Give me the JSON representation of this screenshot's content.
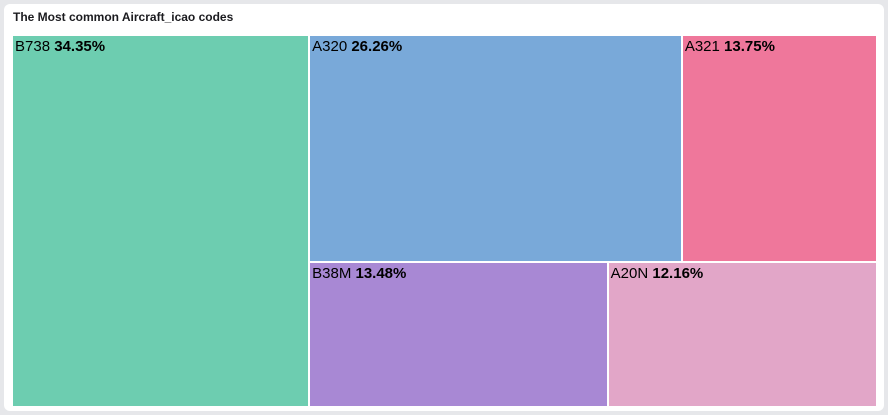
{
  "panel": {
    "title": "The Most common Aircraft_icao codes"
  },
  "chart_data": {
    "type": "treemap",
    "title": "The Most common Aircraft_icao codes",
    "items": [
      {
        "label": "B738",
        "value": 34.35,
        "display": "34.35%",
        "color": "#6dcdb0"
      },
      {
        "label": "A320",
        "value": 26.26,
        "display": "26.26%",
        "color": "#79a9d9"
      },
      {
        "label": "A321",
        "value": 13.75,
        "display": "13.75%",
        "color": "#ef779b"
      },
      {
        "label": "B38M",
        "value": 13.48,
        "display": "13.48%",
        "color": "#a888d4"
      },
      {
        "label": "A20N",
        "value": 12.16,
        "display": "12.16%",
        "color": "#e2a6c8"
      }
    ]
  }
}
